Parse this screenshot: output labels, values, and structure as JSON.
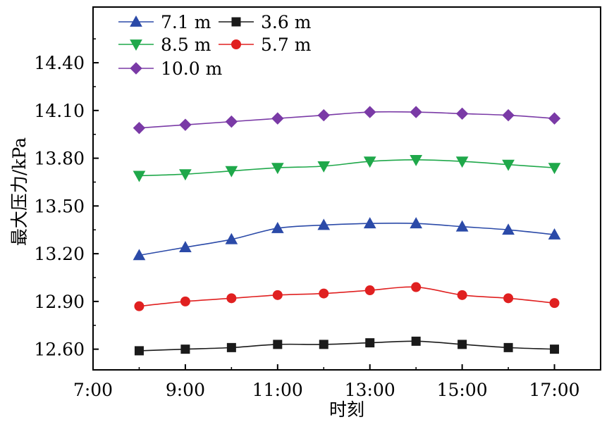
{
  "chart_data": {
    "type": "line",
    "xlabel": "时刻",
    "ylabel": "最大压力/kPa",
    "x_tick_labels": [
      "7:00",
      "9:00",
      "11:00",
      "13:00",
      "15:00",
      "17:00"
    ],
    "x_tick_values": [
      7,
      9,
      11,
      13,
      15,
      17
    ],
    "y_tick_labels": [
      "12.60",
      "12.90",
      "13.20",
      "13.50",
      "13.80",
      "14.10",
      "14.40"
    ],
    "y_tick_values": [
      12.6,
      12.9,
      13.2,
      13.5,
      13.8,
      14.1,
      14.4
    ],
    "xlim": [
      7,
      18
    ],
    "ylim": [
      12.47,
      14.75
    ],
    "grid": false,
    "legend_position": "top-left",
    "x": [
      8,
      9,
      10,
      11,
      12,
      13,
      14,
      15,
      16,
      17
    ],
    "series": [
      {
        "name": "7.1 m",
        "color": "#2b4aa8",
        "marker": "triangle-up",
        "values": [
          13.19,
          13.24,
          13.29,
          13.36,
          13.38,
          13.39,
          13.39,
          13.37,
          13.35,
          13.32
        ]
      },
      {
        "name": "3.6 m",
        "color": "#1a1a1a",
        "marker": "square",
        "values": [
          12.59,
          12.6,
          12.61,
          12.63,
          12.63,
          12.64,
          12.65,
          12.63,
          12.61,
          12.6
        ]
      },
      {
        "name": "8.5 m",
        "color": "#1fa84a",
        "marker": "triangle-down",
        "values": [
          13.69,
          13.7,
          13.72,
          13.74,
          13.75,
          13.78,
          13.79,
          13.78,
          13.76,
          13.74
        ]
      },
      {
        "name": "5.7 m",
        "color": "#e02020",
        "marker": "circle",
        "values": [
          12.87,
          12.9,
          12.92,
          12.94,
          12.95,
          12.97,
          12.99,
          12.94,
          12.92,
          12.89
        ]
      },
      {
        "name": "10.0 m",
        "color": "#7a3aa6",
        "marker": "diamond",
        "values": [
          13.99,
          14.01,
          14.03,
          14.05,
          14.07,
          14.09,
          14.09,
          14.08,
          14.07,
          14.05
        ]
      }
    ]
  }
}
